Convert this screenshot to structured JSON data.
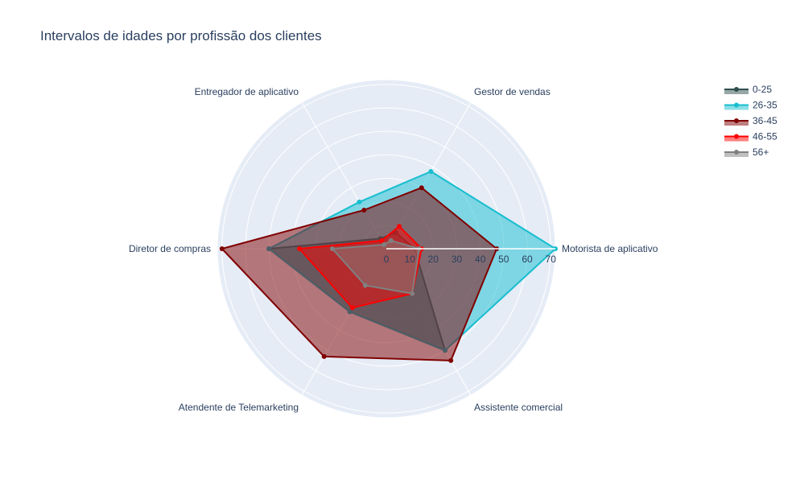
{
  "chart_data": {
    "type": "radar",
    "title": "Intervalos de idades por profissão dos clientes",
    "categories": [
      "Motorista de aplicativo",
      "Gestor de vendas",
      "Entregador de aplicativo",
      "Diretor de compras",
      "Atendente de Telemarketing",
      "Assistente comercial"
    ],
    "radial_ticks": [
      0,
      10,
      20,
      30,
      40,
      50,
      60,
      70
    ],
    "radial_range": [
      0,
      72
    ],
    "angular_start_deg": 0,
    "angular_direction": "counterclockwise",
    "grid": true,
    "legend_position": "top-right",
    "series": [
      {
        "name": "0-25",
        "color": "#2f4f4f",
        "values": [
          12,
          8,
          5,
          50,
          31,
          50
        ]
      },
      {
        "name": "26-35",
        "color": "#17becf",
        "values": [
          72,
          38,
          23,
          50,
          31,
          50
        ]
      },
      {
        "name": "36-45",
        "color": "#800000",
        "values": [
          47,
          30,
          19,
          70,
          53,
          55
        ]
      },
      {
        "name": "46-55",
        "color": "#ff0000",
        "values": [
          15,
          11,
          4,
          37,
          29,
          22
        ]
      },
      {
        "name": "56+",
        "color": "#808080",
        "values": [
          14,
          4,
          2,
          23,
          18,
          22
        ]
      }
    ]
  }
}
